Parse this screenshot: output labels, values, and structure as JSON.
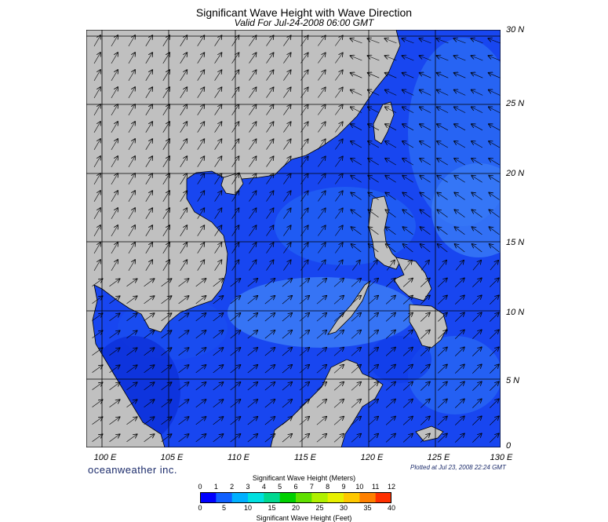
{
  "header": {
    "title": "Significant Wave Height with Wave Direction",
    "subtitle": "Valid For Jul-24-2008 06:00 GMT"
  },
  "map": {
    "lat_labels": [
      "30 N",
      "25 N",
      "20 N",
      "15 N",
      "10 N",
      "5 N",
      "0"
    ],
    "lon_labels": [
      "100 E",
      "105 E",
      "110 E",
      "115 E",
      "120 E",
      "125 E",
      "130 E"
    ],
    "land_color": "#c0c0c0",
    "wave_direction": "mostly toward north-east in the south, south-west to westward in the north-east"
  },
  "footer": {
    "brand": "oceanweather inc.",
    "plotted": "Plotted at Jul 23, 2008 22:24 GMT"
  },
  "legend": {
    "meters_title": "Significant Wave Height (Meters)",
    "feet_title": "Significant Wave Height (Feet)",
    "meters_ticks": [
      "0",
      "1",
      "2",
      "3",
      "4",
      "5",
      "6",
      "7",
      "8",
      "9",
      "10",
      "11",
      "12"
    ],
    "feet_ticks": [
      "0",
      "5",
      "10",
      "15",
      "20",
      "25",
      "30",
      "35",
      "40"
    ],
    "colors": [
      "#0000ff",
      "#1060ff",
      "#00b0ff",
      "#00e0e0",
      "#00d890",
      "#00d000",
      "#60e000",
      "#b0f000",
      "#e8f000",
      "#ffc800",
      "#ff8000",
      "#ff3000"
    ]
  }
}
